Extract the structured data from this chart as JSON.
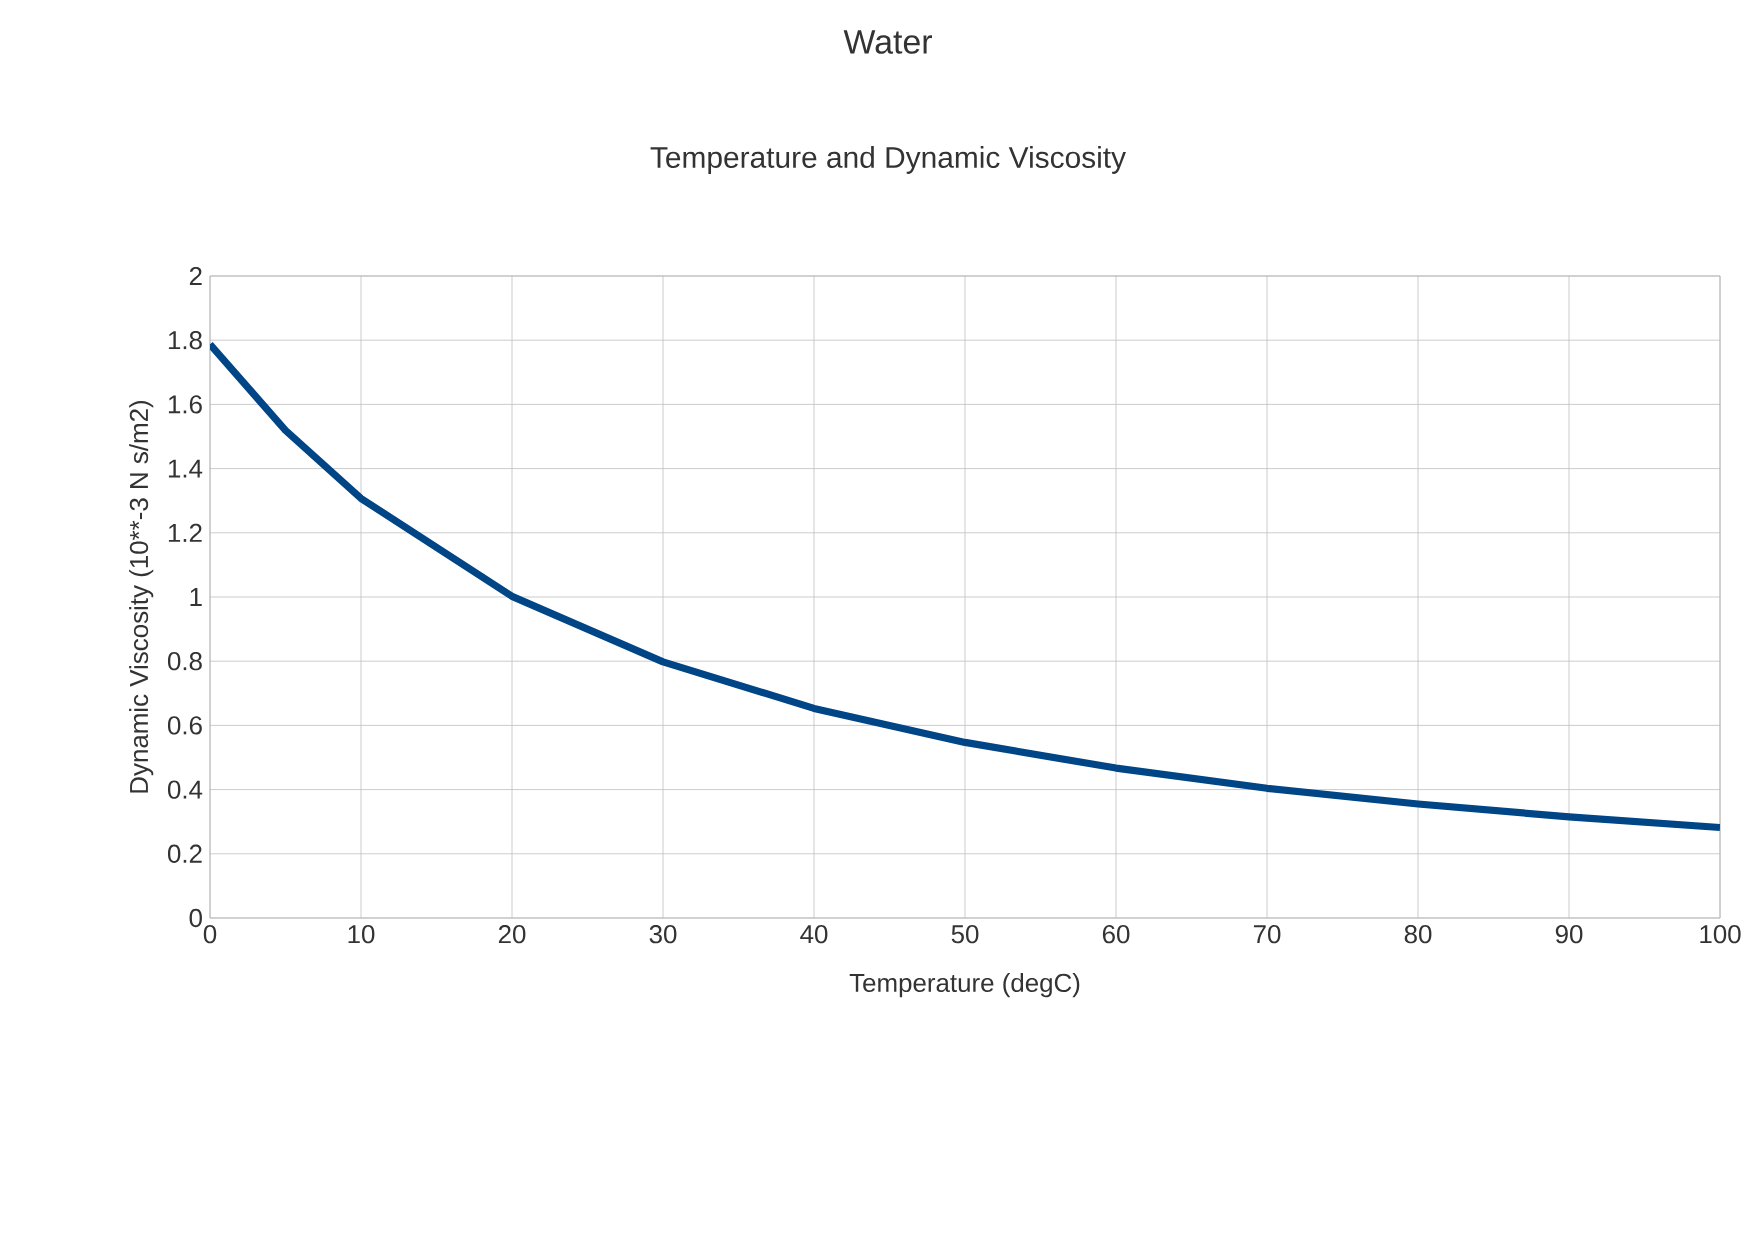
{
  "chart_data": {
    "type": "line",
    "title": "Water",
    "subtitle": "Temperature and Dynamic Viscosity",
    "xlabel": "Temperature (degC)",
    "ylabel": "Dynamic Viscosity (10**-3 N s/m2)",
    "x": [
      0,
      5,
      10,
      20,
      30,
      40,
      50,
      60,
      70,
      80,
      90,
      100
    ],
    "series": [
      {
        "color": "#004586",
        "values": [
          1.787,
          1.519,
          1.307,
          1.002,
          0.798,
          0.653,
          0.547,
          0.467,
          0.404,
          0.355,
          0.315,
          0.282
        ]
      }
    ],
    "xlim": [
      0,
      100
    ],
    "xticks": [
      0,
      10,
      20,
      30,
      40,
      50,
      60,
      70,
      80,
      90,
      100
    ],
    "ylim": [
      0,
      2
    ],
    "yticks": [
      0,
      0.2,
      0.4,
      0.6,
      0.8,
      1,
      1.2,
      1.4,
      1.6,
      1.8,
      2
    ],
    "grid": true,
    "marker": "none",
    "line_style": "solid"
  }
}
